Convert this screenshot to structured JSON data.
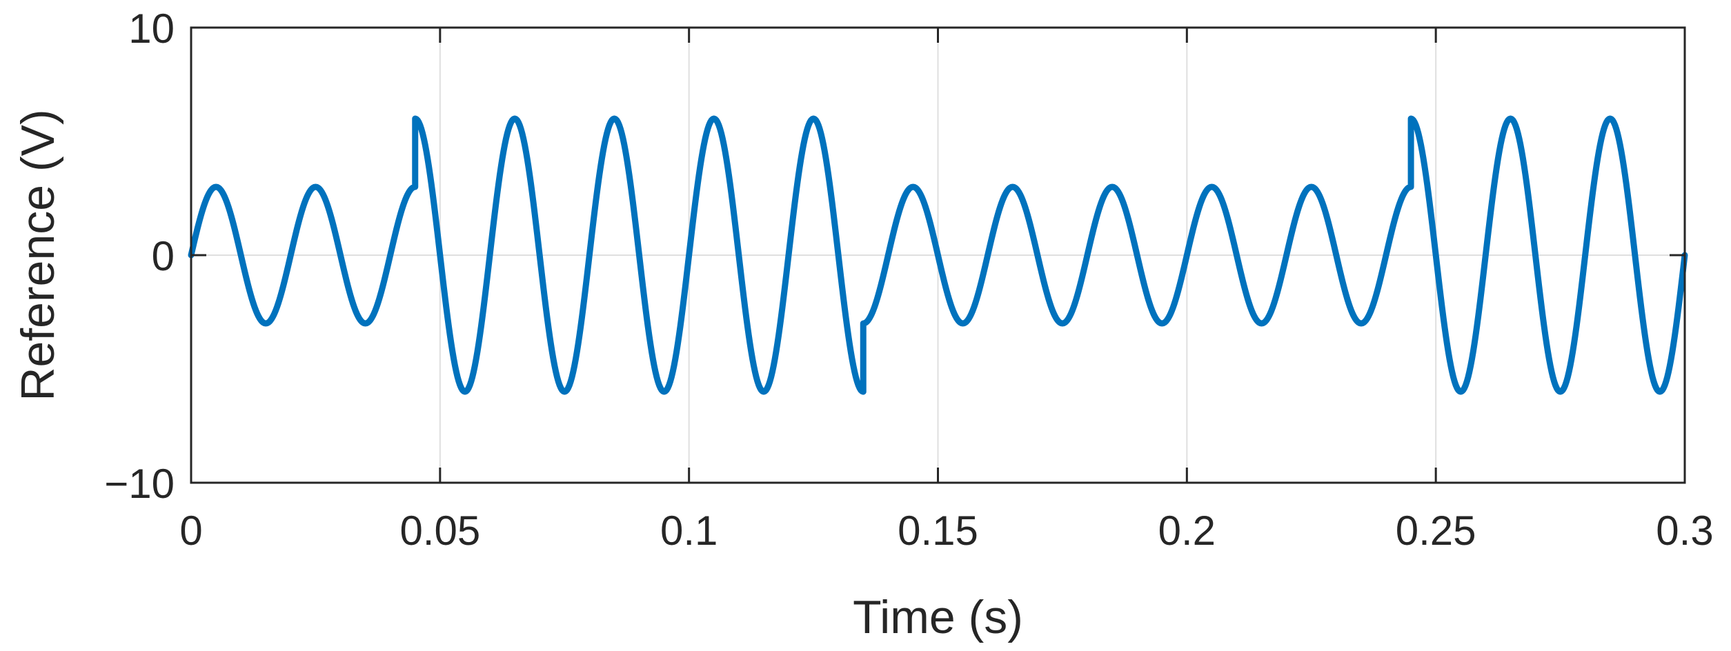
{
  "chart_data": {
    "type": "line",
    "title": "",
    "xlabel": "Time (s)",
    "ylabel": "Reference (V)",
    "xlim": [
      0,
      0.3
    ],
    "ylim": [
      -10,
      10
    ],
    "xticks": [
      0,
      0.05,
      0.1,
      0.15,
      0.2,
      0.25,
      0.3
    ],
    "xtick_labels": [
      "0",
      "0.05",
      "0.1",
      "0.15",
      "0.2",
      "0.25",
      "0.3"
    ],
    "yticks": [
      -10,
      0,
      10
    ],
    "ytick_labels": [
      "−10",
      "0",
      "10"
    ],
    "grid": true,
    "line_color": "#0072BD",
    "grid_color": "#dfdfdf",
    "axis_color": "#262626",
    "series": [
      {
        "frequency_hz": 50,
        "segments": [
          {
            "t_start": 0,
            "t_end": 0.045,
            "amplitude": 3
          },
          {
            "t_start": 0.045,
            "t_end": 0.135,
            "amplitude": 6
          },
          {
            "t_start": 0.135,
            "t_end": 0.245,
            "amplitude": 3
          },
          {
            "t_start": 0.245,
            "t_end": 0.3,
            "amplitude": 6
          }
        ]
      }
    ]
  }
}
